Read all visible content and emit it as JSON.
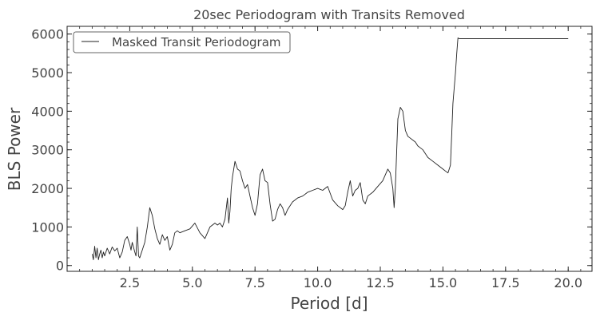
{
  "chart_data": {
    "type": "line",
    "title": "20sec Periodogram with Transits Removed",
    "xlabel": "Period [d]",
    "ylabel": "BLS Power",
    "xlim": [
      0.0,
      20.95
    ],
    "ylim": [
      -150,
      6200
    ],
    "x_ticks": [
      2.5,
      5.0,
      7.5,
      10.0,
      12.5,
      15.0,
      17.5,
      20.0
    ],
    "x_tick_labels": [
      "2.5",
      "5.0",
      "7.5",
      "10.0",
      "12.5",
      "15.0",
      "17.5",
      "20.0"
    ],
    "x_minor_step": 0.5,
    "y_ticks": [
      0,
      1000,
      2000,
      3000,
      4000,
      5000,
      6000
    ],
    "y_tick_labels": [
      "0",
      "1000",
      "2000",
      "3000",
      "4000",
      "5000",
      "6000"
    ],
    "y_minor_step": 200,
    "grid": false,
    "legend": {
      "position": "top-left",
      "entries": [
        "Masked Transit Periodogram"
      ]
    },
    "line_color": "#222222",
    "series": [
      {
        "name": "Masked Transit Periodogram",
        "x": [
          1.0,
          1.05,
          1.1,
          1.15,
          1.2,
          1.25,
          1.3,
          1.35,
          1.4,
          1.45,
          1.5,
          1.6,
          1.7,
          1.8,
          1.9,
          2.0,
          2.1,
          2.2,
          2.3,
          2.4,
          2.5,
          2.55,
          2.6,
          2.7,
          2.75,
          2.8,
          2.85,
          2.9,
          2.95,
          3.0,
          3.1,
          3.2,
          3.3,
          3.4,
          3.5,
          3.6,
          3.7,
          3.8,
          3.9,
          4.0,
          4.1,
          4.2,
          4.3,
          4.4,
          4.5,
          4.7,
          4.9,
          5.1,
          5.3,
          5.5,
          5.7,
          5.9,
          6.0,
          6.1,
          6.2,
          6.3,
          6.4,
          6.45,
          6.5,
          6.55,
          6.6,
          6.7,
          6.8,
          6.9,
          7.0,
          7.1,
          7.2,
          7.3,
          7.4,
          7.5,
          7.6,
          7.7,
          7.8,
          7.9,
          8.0,
          8.1,
          8.2,
          8.3,
          8.4,
          8.5,
          8.6,
          8.7,
          8.8,
          8.9,
          9.0,
          9.2,
          9.4,
          9.6,
          9.8,
          10.0,
          10.2,
          10.4,
          10.6,
          10.8,
          11.0,
          11.1,
          11.2,
          11.3,
          11.4,
          11.5,
          11.6,
          11.7,
          11.8,
          11.9,
          12.0,
          12.2,
          12.4,
          12.6,
          12.8,
          12.9,
          13.0,
          13.05,
          13.1,
          13.2,
          13.3,
          13.4,
          13.5,
          13.6,
          13.7,
          13.8,
          13.9,
          14.0,
          14.1,
          14.2,
          14.4,
          14.6,
          14.8,
          15.0,
          15.1,
          15.2,
          15.3,
          15.35,
          15.4,
          15.5,
          15.55,
          15.6,
          15.65,
          15.7,
          16.0,
          17.0,
          18.0,
          19.0,
          20.0
        ],
        "values": [
          300,
          150,
          500,
          200,
          450,
          150,
          300,
          400,
          200,
          350,
          250,
          450,
          300,
          480,
          380,
          450,
          200,
          350,
          650,
          750,
          550,
          400,
          600,
          350,
          250,
          1000,
          250,
          200,
          300,
          400,
          600,
          1000,
          1500,
          1300,
          950,
          700,
          550,
          800,
          650,
          750,
          400,
          550,
          850,
          900,
          850,
          900,
          950,
          1100,
          850,
          700,
          1000,
          1100,
          1050,
          1100,
          1000,
          1200,
          1750,
          1100,
          1400,
          2000,
          2300,
          2700,
          2500,
          2450,
          2200,
          2000,
          2100,
          1800,
          1500,
          1300,
          1600,
          2350,
          2500,
          2200,
          2150,
          1600,
          1150,
          1200,
          1450,
          1600,
          1500,
          1300,
          1450,
          1550,
          1650,
          1750,
          1800,
          1900,
          1950,
          2000,
          1950,
          2050,
          1700,
          1550,
          1450,
          1550,
          1900,
          2200,
          1800,
          1950,
          2000,
          2150,
          1700,
          1600,
          1800,
          1900,
          2050,
          2200,
          2500,
          2400,
          2000,
          1500,
          2000,
          3800,
          4100,
          4000,
          3500,
          3350,
          3300,
          3250,
          3200,
          3100,
          3050,
          3000,
          2800,
          2700,
          2600,
          2500,
          2450,
          2400,
          2600,
          3400,
          4200,
          5000,
          5500,
          5900,
          5880,
          5880,
          5880,
          5880,
          5880,
          5880,
          5880
        ]
      }
    ]
  }
}
